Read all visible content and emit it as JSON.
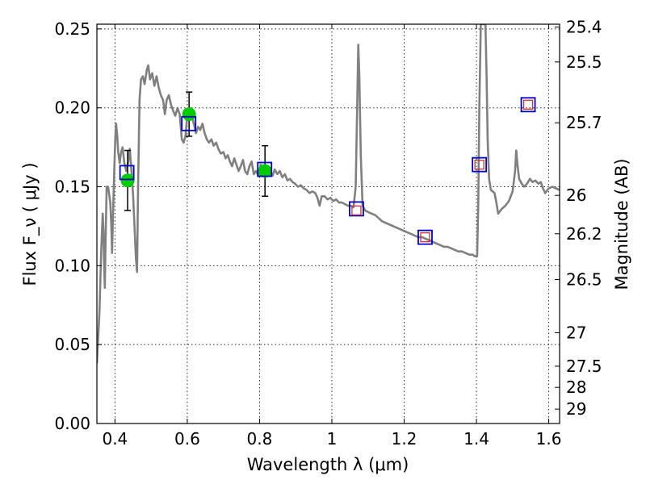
{
  "chart_data": {
    "type": "scatter",
    "xlabel": "Wavelength  λ (μm)",
    "ylabel": "Flux  F_ν  ( μJy )",
    "ylabel_right": "Magnitude (AB)",
    "xlim": [
      0.35,
      1.63
    ],
    "ylim": [
      0.0,
      0.253
    ],
    "grid": true,
    "x_ticks": [
      {
        "value": 0.4,
        "label": "0.4"
      },
      {
        "value": 0.6,
        "label": "0.6"
      },
      {
        "value": 0.8,
        "label": "0.8"
      },
      {
        "value": 1.0,
        "label": "1"
      },
      {
        "value": 1.2,
        "label": "1.2"
      },
      {
        "value": 1.4,
        "label": "1.4"
      },
      {
        "value": 1.6,
        "label": "1.6"
      }
    ],
    "y_ticks": [
      {
        "value": 0.0,
        "label": "0.00"
      },
      {
        "value": 0.05,
        "label": "0.05"
      },
      {
        "value": 0.1,
        "label": "0.10"
      },
      {
        "value": 0.15,
        "label": "0.15"
      },
      {
        "value": 0.2,
        "label": "0.20"
      },
      {
        "value": 0.25,
        "label": "0.25"
      }
    ],
    "right_ticks": [
      {
        "label": "25.4",
        "value": 25.4
      },
      {
        "label": "25.5",
        "value": 25.5
      },
      {
        "label": "25.7",
        "value": 25.7
      },
      {
        "label": "26",
        "value": 26.0
      },
      {
        "label": "26.2",
        "value": 26.2
      },
      {
        "label": "26.5",
        "value": 26.5
      },
      {
        "label": "27",
        "value": 27.0
      },
      {
        "label": "27.5",
        "value": 27.5
      },
      {
        "label": "28",
        "value": 28.0
      },
      {
        "label": "29",
        "value": 29.0
      }
    ],
    "series": [
      {
        "kind": "line",
        "color": "#808080",
        "points": [
          [
            0.35,
            0.038
          ],
          [
            0.357,
            0.07
          ],
          [
            0.362,
            0.11
          ],
          [
            0.366,
            0.133
          ],
          [
            0.368,
            0.122
          ],
          [
            0.37,
            0.1
          ],
          [
            0.372,
            0.086
          ],
          [
            0.374,
            0.115
          ],
          [
            0.377,
            0.15
          ],
          [
            0.381,
            0.15
          ],
          [
            0.384,
            0.145
          ],
          [
            0.387,
            0.14
          ],
          [
            0.39,
            0.125
          ],
          [
            0.392,
            0.108
          ],
          [
            0.395,
            0.135
          ],
          [
            0.398,
            0.16
          ],
          [
            0.401,
            0.181
          ],
          [
            0.403,
            0.19
          ],
          [
            0.406,
            0.183
          ],
          [
            0.409,
            0.172
          ],
          [
            0.413,
            0.165
          ],
          [
            0.417,
            0.172
          ],
          [
            0.421,
            0.175
          ],
          [
            0.426,
            0.165
          ],
          [
            0.431,
            0.16
          ],
          [
            0.436,
            0.165
          ],
          [
            0.441,
            0.174
          ],
          [
            0.445,
            0.162
          ],
          [
            0.45,
            0.145
          ],
          [
            0.455,
            0.12
          ],
          [
            0.458,
            0.105
          ],
          [
            0.461,
            0.096
          ],
          [
            0.464,
            0.15
          ],
          [
            0.468,
            0.205
          ],
          [
            0.472,
            0.218
          ],
          [
            0.477,
            0.22
          ],
          [
            0.482,
            0.215
          ],
          [
            0.488,
            0.224
          ],
          [
            0.492,
            0.227
          ],
          [
            0.497,
            0.218
          ],
          [
            0.503,
            0.222
          ],
          [
            0.509,
            0.214
          ],
          [
            0.515,
            0.22
          ],
          [
            0.521,
            0.213
          ],
          [
            0.527,
            0.208
          ],
          [
            0.533,
            0.205
          ],
          [
            0.538,
            0.196
          ],
          [
            0.543,
            0.205
          ],
          [
            0.549,
            0.208
          ],
          [
            0.555,
            0.202
          ],
          [
            0.561,
            0.198
          ],
          [
            0.567,
            0.195
          ],
          [
            0.573,
            0.2
          ],
          [
            0.579,
            0.196
          ],
          [
            0.585,
            0.18
          ],
          [
            0.59,
            0.178
          ],
          [
            0.595,
            0.182
          ],
          [
            0.6,
            0.195
          ],
          [
            0.606,
            0.2
          ],
          [
            0.612,
            0.196
          ],
          [
            0.618,
            0.19
          ],
          [
            0.624,
            0.184
          ],
          [
            0.63,
            0.188
          ],
          [
            0.636,
            0.186
          ],
          [
            0.642,
            0.19
          ],
          [
            0.648,
            0.184
          ],
          [
            0.654,
            0.18
          ],
          [
            0.66,
            0.178
          ],
          [
            0.667,
            0.18
          ],
          [
            0.673,
            0.176
          ],
          [
            0.68,
            0.178
          ],
          [
            0.686,
            0.174
          ],
          [
            0.693,
            0.171
          ],
          [
            0.7,
            0.172
          ],
          [
            0.706,
            0.168
          ],
          [
            0.712,
            0.17
          ],
          [
            0.718,
            0.166
          ],
          [
            0.724,
            0.163
          ],
          [
            0.73,
            0.168
          ],
          [
            0.736,
            0.164
          ],
          [
            0.742,
            0.16
          ],
          [
            0.748,
            0.163
          ],
          [
            0.754,
            0.167
          ],
          [
            0.76,
            0.16
          ],
          [
            0.766,
            0.158
          ],
          [
            0.772,
            0.163
          ],
          [
            0.778,
            0.166
          ],
          [
            0.784,
            0.158
          ],
          [
            0.79,
            0.16
          ],
          [
            0.797,
            0.157
          ],
          [
            0.803,
            0.164
          ],
          [
            0.81,
            0.16
          ],
          [
            0.816,
            0.158
          ],
          [
            0.822,
            0.163
          ],
          [
            0.829,
            0.16
          ],
          [
            0.836,
            0.157
          ],
          [
            0.842,
            0.161
          ],
          [
            0.849,
            0.158
          ],
          [
            0.856,
            0.16
          ],
          [
            0.863,
            0.156
          ],
          [
            0.87,
            0.158
          ],
          [
            0.877,
            0.154
          ],
          [
            0.884,
            0.155
          ],
          [
            0.891,
            0.153
          ],
          [
            0.898,
            0.152
          ],
          [
            0.906,
            0.15
          ],
          [
            0.914,
            0.151
          ],
          [
            0.922,
            0.149
          ],
          [
            0.93,
            0.148
          ],
          [
            0.938,
            0.146
          ],
          [
            0.946,
            0.147
          ],
          [
            0.954,
            0.146
          ],
          [
            0.96,
            0.143
          ],
          [
            0.966,
            0.138
          ],
          [
            0.972,
            0.144
          ],
          [
            0.98,
            0.144
          ],
          [
            0.988,
            0.142
          ],
          [
            0.996,
            0.143
          ],
          [
            1.004,
            0.141
          ],
          [
            1.012,
            0.142
          ],
          [
            1.02,
            0.14
          ],
          [
            1.028,
            0.14
          ],
          [
            1.036,
            0.139
          ],
          [
            1.044,
            0.138
          ],
          [
            1.052,
            0.138
          ],
          [
            1.06,
            0.137
          ],
          [
            1.066,
            0.15
          ],
          [
            1.07,
            0.2
          ],
          [
            1.073,
            0.24
          ],
          [
            1.076,
            0.22
          ],
          [
            1.08,
            0.17
          ],
          [
            1.085,
            0.138
          ],
          [
            1.092,
            0.135
          ],
          [
            1.1,
            0.134
          ],
          [
            1.11,
            0.133
          ],
          [
            1.12,
            0.132
          ],
          [
            1.13,
            0.13
          ],
          [
            1.14,
            0.128
          ],
          [
            1.15,
            0.127
          ],
          [
            1.16,
            0.126
          ],
          [
            1.17,
            0.125
          ],
          [
            1.18,
            0.124
          ],
          [
            1.19,
            0.123
          ],
          [
            1.2,
            0.122
          ],
          [
            1.21,
            0.121
          ],
          [
            1.22,
            0.12
          ],
          [
            1.23,
            0.119
          ],
          [
            1.24,
            0.118
          ],
          [
            1.25,
            0.118
          ],
          [
            1.26,
            0.117
          ],
          [
            1.27,
            0.116
          ],
          [
            1.28,
            0.115
          ],
          [
            1.29,
            0.114
          ],
          [
            1.3,
            0.113
          ],
          [
            1.31,
            0.112
          ],
          [
            1.32,
            0.112
          ],
          [
            1.33,
            0.111
          ],
          [
            1.34,
            0.11
          ],
          [
            1.35,
            0.109
          ],
          [
            1.36,
            0.109
          ],
          [
            1.37,
            0.108
          ],
          [
            1.38,
            0.107
          ],
          [
            1.39,
            0.107
          ],
          [
            1.395,
            0.106
          ],
          [
            1.402,
            0.106
          ],
          [
            1.405,
            0.14
          ],
          [
            1.408,
            0.2
          ],
          [
            1.412,
            0.253
          ],
          [
            1.425,
            0.253
          ],
          [
            1.428,
            0.22
          ],
          [
            1.431,
            0.18
          ],
          [
            1.435,
            0.155
          ],
          [
            1.44,
            0.148
          ],
          [
            1.45,
            0.146
          ],
          [
            1.455,
            0.14
          ],
          [
            1.46,
            0.133
          ],
          [
            1.47,
            0.136
          ],
          [
            1.48,
            0.138
          ],
          [
            1.49,
            0.141
          ],
          [
            1.5,
            0.147
          ],
          [
            1.507,
            0.16
          ],
          [
            1.51,
            0.173
          ],
          [
            1.513,
            0.165
          ],
          [
            1.518,
            0.155
          ],
          [
            1.525,
            0.152
          ],
          [
            1.532,
            0.15
          ],
          [
            1.54,
            0.152
          ],
          [
            1.548,
            0.155
          ],
          [
            1.555,
            0.153
          ],
          [
            1.563,
            0.154
          ],
          [
            1.571,
            0.152
          ],
          [
            1.578,
            0.153
          ],
          [
            1.584,
            0.149
          ],
          [
            1.59,
            0.146
          ],
          [
            1.6,
            0.149
          ],
          [
            1.61,
            0.15
          ],
          [
            1.62,
            0.149
          ],
          [
            1.63,
            0.148
          ]
        ]
      },
      {
        "kind": "points",
        "marker": "circle",
        "color": "#00cc00",
        "x": [
          0.435,
          0.605,
          0.815
        ],
        "y": [
          0.154,
          0.196,
          0.16
        ],
        "yerr": [
          0.019,
          0.014,
          0.016
        ]
      },
      {
        "kind": "points",
        "marker": "square-open",
        "color": "#0000cc",
        "x": [
          0.433,
          0.604,
          0.814,
          1.068,
          1.258,
          1.408,
          1.543
        ],
        "y": [
          0.159,
          0.19,
          0.161,
          0.136,
          0.118,
          0.164,
          0.202
        ]
      },
      {
        "kind": "points",
        "marker": "square-open-small",
        "color": "#cc3333",
        "x": [
          1.068,
          1.258,
          1.408,
          1.543
        ],
        "y": [
          0.135,
          0.118,
          0.164,
          0.202
        ]
      }
    ]
  }
}
